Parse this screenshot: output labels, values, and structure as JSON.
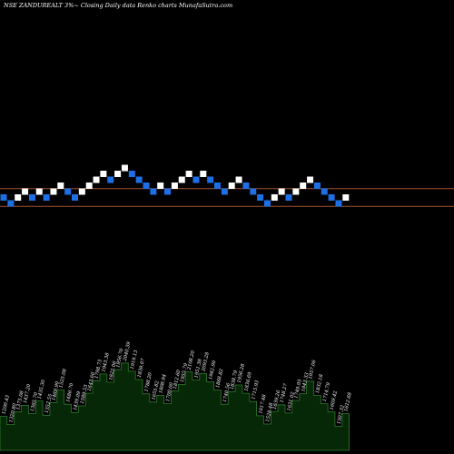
{
  "header": {
    "title": "NSE ZANDUREALT 3%~  Closing Daily data  Renko  charts MunafaSutra.com"
  },
  "colors": {
    "background": "#000000",
    "up_brick": "#ffffff",
    "down_brick": "#1e6fe6",
    "levels": "#a0522d",
    "volume_fill": "#062806",
    "volume_stroke": "#2f7a2f",
    "text": "#ffffff"
  },
  "chart_data": {
    "type": "renko",
    "brick_size_percent": 3,
    "levels": [
      1.3,
      1.0
    ],
    "bricks": [
      {
        "dir": "down",
        "level": 0.0
      },
      {
        "dir": "down",
        "level": -0.1
      },
      {
        "dir": "up",
        "level": 0.0
      },
      {
        "dir": "up",
        "level": 0.1
      },
      {
        "dir": "down",
        "level": 0.0
      },
      {
        "dir": "up",
        "level": 0.1
      },
      {
        "dir": "down",
        "level": 0.0
      },
      {
        "dir": "up",
        "level": 0.1
      },
      {
        "dir": "up",
        "level": 0.2
      },
      {
        "dir": "down",
        "level": 0.1
      },
      {
        "dir": "down",
        "level": 0.0
      },
      {
        "dir": "up",
        "level": 0.1
      },
      {
        "dir": "up",
        "level": 0.2
      },
      {
        "dir": "up",
        "level": 0.3
      },
      {
        "dir": "up",
        "level": 0.4
      },
      {
        "dir": "down",
        "level": 0.3
      },
      {
        "dir": "up",
        "level": 0.4
      },
      {
        "dir": "up",
        "level": 0.5
      },
      {
        "dir": "down",
        "level": 0.4
      },
      {
        "dir": "down",
        "level": 0.3
      },
      {
        "dir": "down",
        "level": 0.2
      },
      {
        "dir": "down",
        "level": 0.1
      },
      {
        "dir": "up",
        "level": 0.2
      },
      {
        "dir": "down",
        "level": 0.1
      },
      {
        "dir": "up",
        "level": 0.2
      },
      {
        "dir": "up",
        "level": 0.3
      },
      {
        "dir": "up",
        "level": 0.4
      },
      {
        "dir": "down",
        "level": 0.3
      },
      {
        "dir": "up",
        "level": 0.4
      },
      {
        "dir": "down",
        "level": 0.3
      },
      {
        "dir": "down",
        "level": 0.2
      },
      {
        "dir": "down",
        "level": 0.1
      },
      {
        "dir": "up",
        "level": 0.2
      },
      {
        "dir": "up",
        "level": 0.3
      },
      {
        "dir": "down",
        "level": 0.2
      },
      {
        "dir": "down",
        "level": 0.1
      },
      {
        "dir": "down",
        "level": 0.0
      },
      {
        "dir": "down",
        "level": -0.1
      },
      {
        "dir": "up",
        "level": 0.0
      },
      {
        "dir": "up",
        "level": 0.1
      },
      {
        "dir": "down",
        "level": 0.0
      },
      {
        "dir": "up",
        "level": 0.1
      },
      {
        "dir": "up",
        "level": 0.2
      },
      {
        "dir": "up",
        "level": 0.3
      },
      {
        "dir": "down",
        "level": 0.2
      },
      {
        "dir": "down",
        "level": 0.1
      },
      {
        "dir": "down",
        "level": 0.0
      },
      {
        "dir": "down",
        "level": -0.1
      },
      {
        "dir": "up",
        "level": 0.0
      }
    ],
    "volume_labels": [
      "1200.43",
      "1320.80",
      "1375.08",
      "1437.20",
      "1365.70",
      "1435.30",
      "1352.55",
      "1469.90",
      "1525.08",
      "1486.70",
      "1439.09",
      "1589.53",
      "1643.60",
      "1798.73",
      "1943.38",
      "1822.06",
      "1956.70",
      "2040.39",
      "1919.13",
      "1839.07",
      "1788.20",
      "1655.82",
      "1808.94",
      "1700.00",
      "1812.60",
      "1955.79",
      "2108.20",
      "1951.38",
      "2093.28",
      "1942.90",
      "1868.82",
      "1740.56",
      "1838.79",
      "1956.28",
      "1836.69",
      "1715.93",
      "1617.48",
      "1528.48",
      "1639.26",
      "1748.27",
      "1631.02",
      "1749.95",
      "1843.33",
      "1957.06",
      "1832.18",
      "1714.79",
      "1609.42",
      "1507.32",
      "1612.68"
    ]
  }
}
